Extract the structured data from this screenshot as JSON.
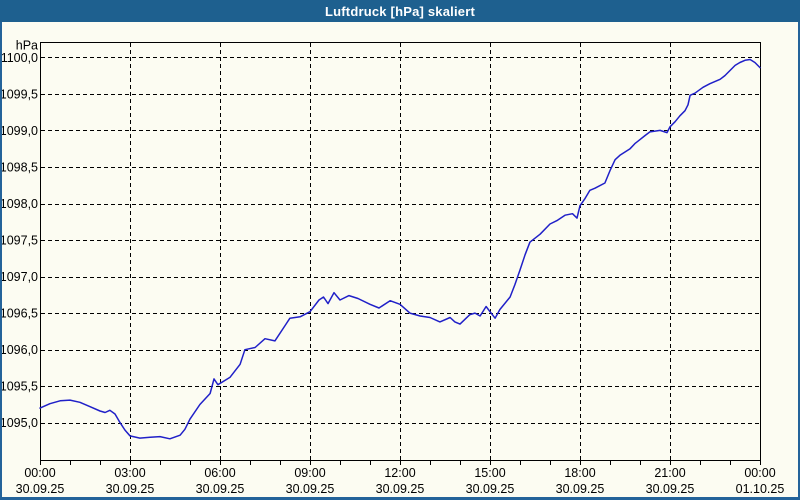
{
  "window": {
    "title": "Luftdruck [hPa] skaliert",
    "title_bar_color": "#1E608F",
    "border_color": "#24639A",
    "background_color": "#FCFCF2"
  },
  "chart_data": {
    "type": "line",
    "title": "Luftdruck [hPa] skaliert",
    "unit_label": "hPa",
    "line_color": "#2020C8",
    "grid": true,
    "grid_style": "dashed-black",
    "legend": "none",
    "x_axis": {
      "range_hours": [
        0,
        24
      ],
      "major_tick_hours": 3,
      "minor_tick_hours": 1,
      "labels": [
        {
          "time": "00:00",
          "date": "30.09.25"
        },
        {
          "time": "03:00",
          "date": "30.09.25"
        },
        {
          "time": "06:00",
          "date": "30.09.25"
        },
        {
          "time": "09:00",
          "date": "30.09.25"
        },
        {
          "time": "12:00",
          "date": "30.09.25"
        },
        {
          "time": "15:00",
          "date": "30.09.25"
        },
        {
          "time": "18:00",
          "date": "30.09.25"
        },
        {
          "time": "21:00",
          "date": "30.09.25"
        },
        {
          "time": "00:00",
          "date": "01.10.25"
        }
      ]
    },
    "y_axis": {
      "plot_range": [
        1094.49,
        1100.21
      ],
      "tick_values": [
        1100.0,
        1099.5,
        1099.0,
        1098.5,
        1098.0,
        1097.5,
        1097.0,
        1096.5,
        1096.0,
        1095.5,
        1095.0
      ],
      "tick_labels": [
        "1100,0",
        "1099,5",
        "1099,0",
        "1098,5",
        "1098,0",
        "1097,5",
        "1097,0",
        "1096,5",
        "1096,0",
        "1095,5",
        "1095,0"
      ]
    },
    "series": [
      {
        "name": "Luftdruck [hPa]",
        "points": [
          [
            0.0,
            1095.2
          ],
          [
            0.33,
            1095.26
          ],
          [
            0.67,
            1095.3
          ],
          [
            1.0,
            1095.31
          ],
          [
            1.33,
            1095.28
          ],
          [
            1.67,
            1095.22
          ],
          [
            2.0,
            1095.16
          ],
          [
            2.17,
            1095.14
          ],
          [
            2.33,
            1095.17
          ],
          [
            2.5,
            1095.12
          ],
          [
            2.67,
            1095.0
          ],
          [
            2.83,
            1094.9
          ],
          [
            3.0,
            1094.82
          ],
          [
            3.33,
            1094.79
          ],
          [
            3.67,
            1094.8
          ],
          [
            4.0,
            1094.81
          ],
          [
            4.33,
            1094.78
          ],
          [
            4.67,
            1094.83
          ],
          [
            4.83,
            1094.91
          ],
          [
            5.0,
            1095.05
          ],
          [
            5.33,
            1095.25
          ],
          [
            5.67,
            1095.4
          ],
          [
            5.8,
            1095.6
          ],
          [
            5.93,
            1095.52
          ],
          [
            6.33,
            1095.62
          ],
          [
            6.67,
            1095.8
          ],
          [
            6.83,
            1096.0
          ],
          [
            7.17,
            1096.03
          ],
          [
            7.5,
            1096.15
          ],
          [
            7.83,
            1096.12
          ],
          [
            8.17,
            1096.33
          ],
          [
            8.33,
            1096.43
          ],
          [
            8.67,
            1096.45
          ],
          [
            9.0,
            1096.52
          ],
          [
            9.3,
            1096.68
          ],
          [
            9.45,
            1096.72
          ],
          [
            9.6,
            1096.63
          ],
          [
            9.8,
            1096.78
          ],
          [
            10.0,
            1096.68
          ],
          [
            10.3,
            1096.74
          ],
          [
            10.6,
            1096.7
          ],
          [
            11.0,
            1096.62
          ],
          [
            11.3,
            1096.57
          ],
          [
            11.67,
            1096.67
          ],
          [
            12.0,
            1096.62
          ],
          [
            12.33,
            1096.5
          ],
          [
            12.67,
            1096.46
          ],
          [
            13.0,
            1096.44
          ],
          [
            13.33,
            1096.38
          ],
          [
            13.67,
            1096.44
          ],
          [
            13.83,
            1096.38
          ],
          [
            14.0,
            1096.35
          ],
          [
            14.33,
            1096.48
          ],
          [
            14.5,
            1096.5
          ],
          [
            14.67,
            1096.46
          ],
          [
            14.87,
            1096.59
          ],
          [
            15.0,
            1096.52
          ],
          [
            15.17,
            1096.43
          ],
          [
            15.33,
            1096.55
          ],
          [
            15.67,
            1096.72
          ],
          [
            15.83,
            1096.89
          ],
          [
            16.0,
            1097.09
          ],
          [
            16.17,
            1097.3
          ],
          [
            16.33,
            1097.47
          ],
          [
            16.67,
            1097.58
          ],
          [
            17.0,
            1097.72
          ],
          [
            17.25,
            1097.77
          ],
          [
            17.5,
            1097.84
          ],
          [
            17.75,
            1097.86
          ],
          [
            17.9,
            1097.8
          ],
          [
            18.0,
            1097.97
          ],
          [
            18.17,
            1098.07
          ],
          [
            18.33,
            1098.18
          ],
          [
            18.5,
            1098.21
          ],
          [
            18.83,
            1098.28
          ],
          [
            19.0,
            1098.45
          ],
          [
            19.17,
            1098.6
          ],
          [
            19.33,
            1098.66
          ],
          [
            19.67,
            1098.75
          ],
          [
            19.83,
            1098.82
          ],
          [
            20.17,
            1098.93
          ],
          [
            20.33,
            1098.98
          ],
          [
            20.67,
            1099.0
          ],
          [
            20.9,
            1098.97
          ],
          [
            21.0,
            1099.05
          ],
          [
            21.17,
            1099.12
          ],
          [
            21.33,
            1099.2
          ],
          [
            21.5,
            1099.27
          ],
          [
            21.6,
            1099.35
          ],
          [
            21.67,
            1099.48
          ],
          [
            21.83,
            1099.51
          ],
          [
            22.1,
            1099.59
          ],
          [
            22.33,
            1099.64
          ],
          [
            22.67,
            1099.7
          ],
          [
            22.83,
            1099.75
          ],
          [
            23.0,
            1099.82
          ],
          [
            23.17,
            1099.89
          ],
          [
            23.33,
            1099.93
          ],
          [
            23.5,
            1099.96
          ],
          [
            23.67,
            1099.97
          ],
          [
            23.83,
            1099.93
          ],
          [
            24.0,
            1099.86
          ]
        ]
      }
    ]
  }
}
